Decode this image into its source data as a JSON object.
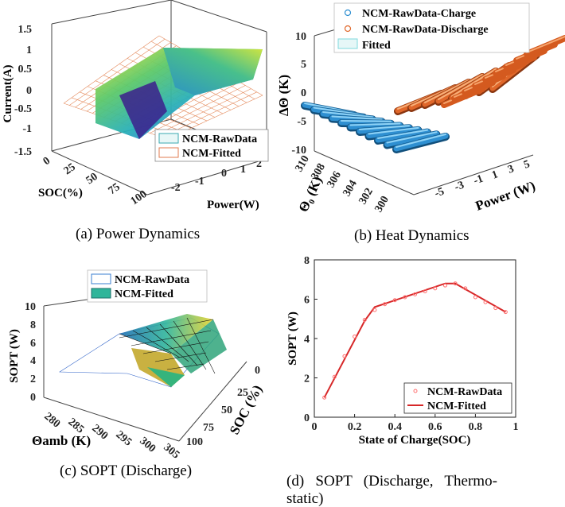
{
  "chart_data": [
    {
      "id": "a",
      "type": "surface",
      "caption": "(a) Power Dynamics",
      "zlabel": "Current(A)",
      "xlabel": "SOC(%)",
      "ylabel": "Power(W)",
      "z_ticks": [
        "1.5",
        "1",
        "0.5",
        "0",
        "-0.5",
        "-1",
        "-1.5"
      ],
      "x_ticks": [
        "0",
        "25",
        "50",
        "75",
        "100"
      ],
      "y_ticks": [
        "-2",
        "-1",
        "0",
        "1",
        "2"
      ],
      "legend": [
        "NCM-RawData",
        "NCM-Fitted"
      ],
      "colors": {
        "raw": "#3aa8b0",
        "fitted": "#e07b4f"
      }
    },
    {
      "id": "b",
      "type": "surface",
      "caption": "(b) Heat Dynamics",
      "zlabel": "ΔΘ (K)",
      "xlabel": "Θ₀ (K)",
      "ylabel": "Power (W)",
      "z_ticks": [
        "10",
        "5",
        "0",
        "-5",
        "-10"
      ],
      "x_ticks": [
        "310",
        "308",
        "306",
        "304",
        "302",
        "300"
      ],
      "y_ticks": [
        "-5",
        "-3",
        "-1",
        "1",
        "3",
        "5"
      ],
      "legend": [
        "NCM-RawData-Charge",
        "NCM-RawData-Discharge",
        "Fitted"
      ],
      "colors": {
        "charge": "#2e8fd1",
        "discharge": "#e0672a",
        "fitted": "#7fd8dc"
      }
    },
    {
      "id": "c",
      "type": "surface",
      "caption": "(c) SOPT (Discharge)",
      "zlabel": "SOPT (W)",
      "xlabel": "Θamb (K)",
      "ylabel": "SOC (%)",
      "z_ticks": [
        "10",
        "8",
        "6",
        "4",
        "2",
        "0"
      ],
      "x_ticks": [
        "280",
        "285",
        "290",
        "295",
        "300",
        "305"
      ],
      "y_ticks": [
        "0",
        "25",
        "50",
        "75",
        "100"
      ],
      "legend": [
        "NCM-RawData",
        "NCM-Fitted"
      ]
    },
    {
      "id": "d",
      "type": "line",
      "caption": "(d) SOPT (Discharge, Thermo-static)",
      "caption_lines": [
        "(d)   SOPT   (Discharge,   Thermo-",
        "static)"
      ],
      "xlabel": "State of Charge(SOC)",
      "ylabel": "SOPT (W)",
      "xlim": [
        0,
        1
      ],
      "ylim": [
        0,
        8
      ],
      "x_ticks": [
        "0",
        "0.2",
        "0.4",
        "0.6",
        "0.8",
        "1"
      ],
      "y_ticks": [
        "0",
        "2",
        "4",
        "6",
        "8"
      ],
      "legend": [
        "NCM-RawData",
        "NCM-Fitted"
      ],
      "series": [
        {
          "name": "NCM-RawData",
          "color": "#ff6f6f",
          "marker": "circle",
          "x": [
            0.05,
            0.1,
            0.15,
            0.2,
            0.25,
            0.3,
            0.35,
            0.4,
            0.45,
            0.5,
            0.55,
            0.6,
            0.65,
            0.7,
            0.75,
            0.8,
            0.85,
            0.9,
            0.95
          ],
          "y": [
            1.0,
            2.05,
            3.1,
            4.1,
            4.95,
            5.45,
            5.75,
            5.95,
            6.1,
            6.25,
            6.4,
            6.55,
            6.7,
            6.8,
            6.55,
            6.1,
            5.85,
            5.55,
            5.35
          ]
        },
        {
          "name": "NCM-Fitted",
          "color": "#d62728",
          "marker": "none",
          "x": [
            0.05,
            0.25,
            0.3,
            0.65,
            0.7,
            0.95
          ],
          "y": [
            1.0,
            4.9,
            5.6,
            6.8,
            6.8,
            5.35
          ]
        }
      ]
    }
  ]
}
